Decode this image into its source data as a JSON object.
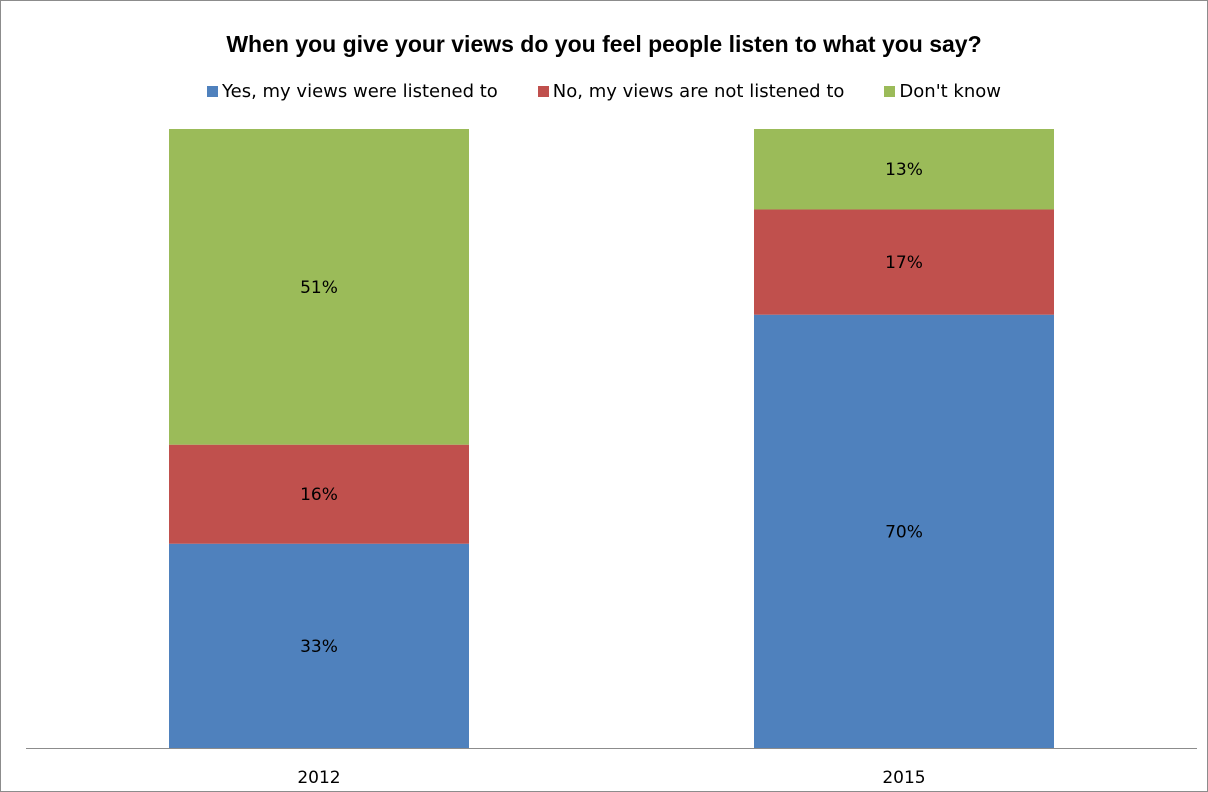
{
  "chart_data": {
    "type": "bar",
    "stacked": true,
    "title": "When you give your views do you feel people listen to what you say?",
    "categories": [
      "2012",
      "2015"
    ],
    "series": [
      {
        "name": "Yes, my views were listened to",
        "color": "#4f81bd",
        "values": [
          33,
          70
        ],
        "labels": [
          "33%",
          "70%"
        ]
      },
      {
        "name": "No, my views are not listened to",
        "color": "#c0504d",
        "values": [
          16,
          17
        ],
        "labels": [
          "16%",
          "17%"
        ]
      },
      {
        "name": "Don't know",
        "color": "#9bbb59",
        "values": [
          51,
          13
        ],
        "labels": [
          "51%",
          "13%"
        ]
      }
    ],
    "ylim": [
      0,
      100
    ],
    "grid": false,
    "legend_position": "top"
  }
}
